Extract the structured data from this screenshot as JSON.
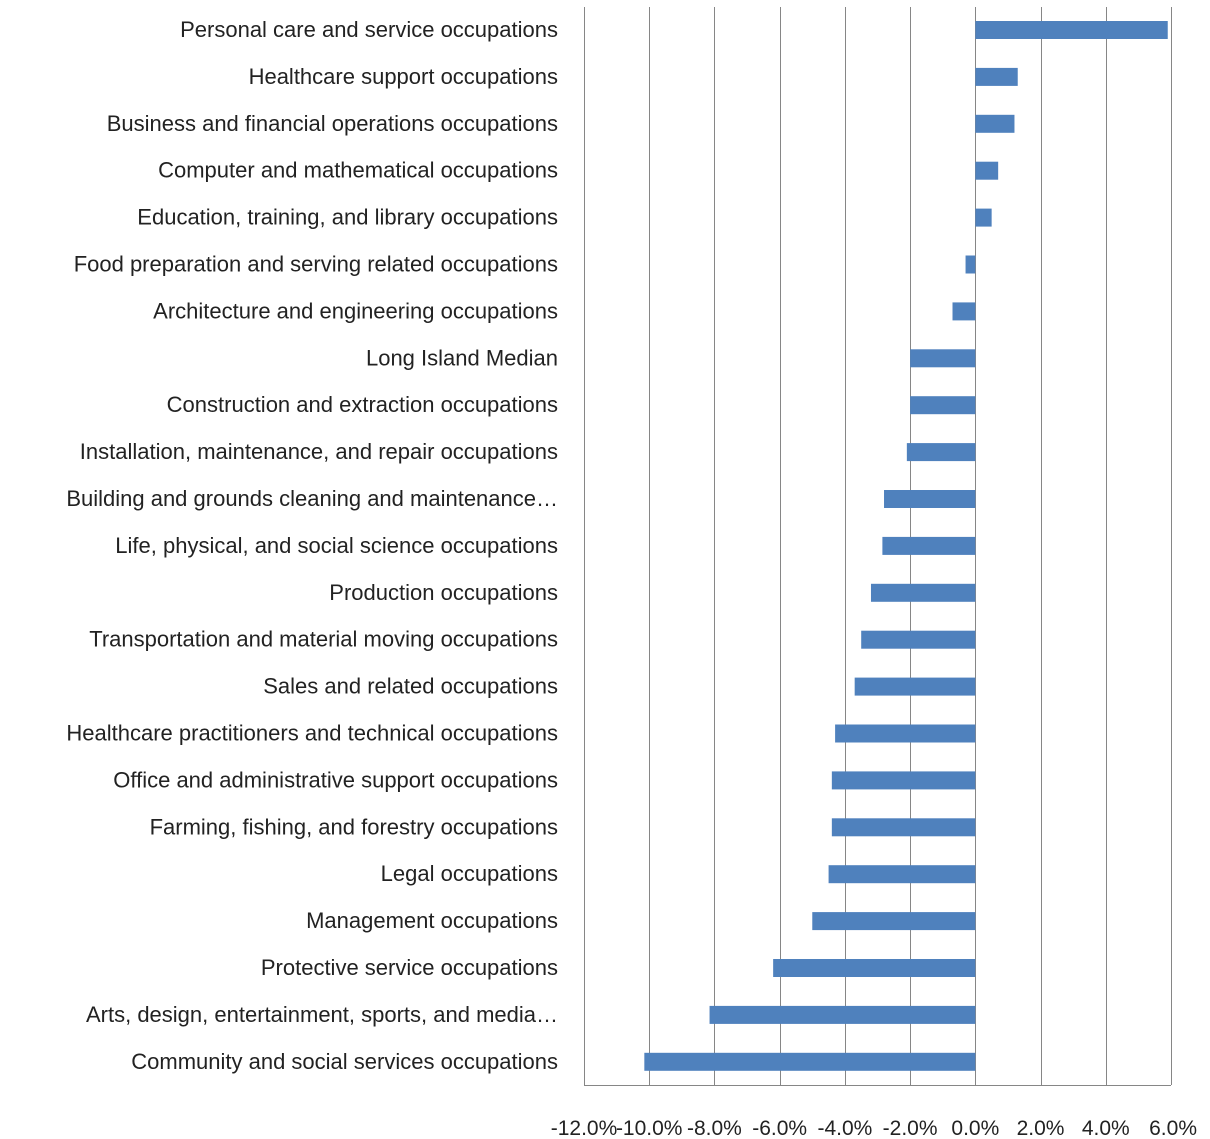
{
  "chart_data": {
    "type": "bar",
    "orientation": "horizontal",
    "title": "",
    "xlabel": "",
    "ylabel": "",
    "grid": true,
    "legend": "none",
    "bar_color": "#4F81BD",
    "categories": [
      "Personal care and service occupations",
      "Healthcare support occupations",
      "Business and financial operations occupations",
      "Computer and mathematical occupations",
      "Education, training, and library occupations",
      "Food preparation and serving related occupations",
      "Architecture and engineering occupations",
      "Long Island Median",
      "Construction and extraction occupations",
      "Installation, maintenance, and repair occupations",
      "Building and grounds cleaning and maintenance…",
      "Life, physical, and social science occupations",
      "Production occupations",
      "Transportation and material moving occupations",
      "Sales and related occupations",
      "Healthcare practitioners and technical occupations",
      "Office and administrative support occupations",
      "Farming, fishing, and forestry occupations",
      "Legal occupations",
      "Management occupations",
      "Protective service occupations",
      "Arts, design, entertainment, sports, and media…",
      "Community and social services occupations"
    ],
    "values": [
      5.9,
      1.3,
      1.2,
      0.7,
      0.5,
      -0.3,
      -0.7,
      -2.0,
      -2.0,
      -2.1,
      -2.8,
      -2.85,
      -3.2,
      -3.5,
      -3.7,
      -4.3,
      -4.4,
      -4.4,
      -4.5,
      -5.0,
      -6.2,
      -8.15,
      -10.15
    ],
    "xlim": [
      -12,
      6
    ],
    "xticks": [
      -12,
      -10,
      -8,
      -6,
      -4,
      -2,
      0,
      2,
      4,
      6
    ],
    "xtick_labels": [
      "-12.0%",
      "-10.0%",
      "-8.0%",
      "-6.0%",
      "-4.0%",
      "-2.0%",
      "0.0%",
      "2.0%",
      "4.0%",
      "6.0%"
    ]
  }
}
